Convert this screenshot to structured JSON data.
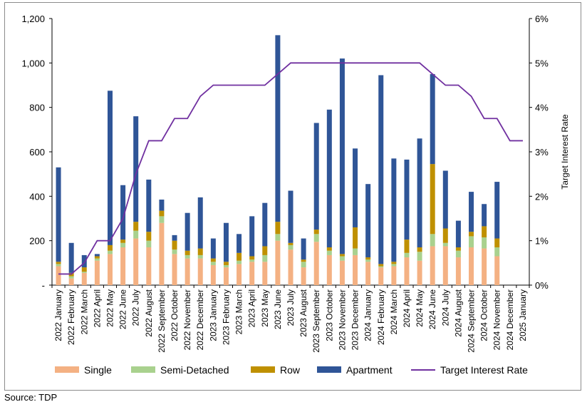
{
  "chart_data": {
    "type": "bar",
    "stacked": true,
    "categories": [
      "2022 January",
      "2022 February",
      "2022 March",
      "2022 April",
      "2022 May",
      "2022 June",
      "2022 July",
      "2022 August",
      "2022 September",
      "2022 October",
      "2022 November",
      "2022 December",
      "2023 January",
      "2023 February",
      "2023 March",
      "2023 April",
      "2023 May",
      "2023 June",
      "2023 July",
      "2023 August",
      "2023 September",
      "2023 October",
      "2023 November",
      "2023 December",
      "2024 January",
      "2024 February",
      "2024 March",
      "2024 April",
      "2024 May",
      "2024 June",
      "2024 July",
      "2024 August",
      "2024 September",
      "2024 October",
      "2024 November",
      "2024 December",
      "2025 January"
    ],
    "series": [
      {
        "name": "Single",
        "color": "#F4B183",
        "axis": "left",
        "values": [
          85,
          30,
          55,
          110,
          140,
          170,
          210,
          170,
          280,
          140,
          120,
          120,
          90,
          80,
          95,
          105,
          105,
          200,
          160,
          80,
          195,
          135,
          110,
          135,
          105,
          80,
          85,
          125,
          110,
          175,
          175,
          125,
          170,
          165,
          130,
          0,
          0
        ]
      },
      {
        "name": "Semi-Detached",
        "color": "#A9D18E",
        "axis": "left",
        "values": [
          10,
          10,
          5,
          10,
          15,
          20,
          35,
          30,
          30,
          20,
          15,
          15,
          15,
          10,
          15,
          10,
          30,
          30,
          20,
          25,
          35,
          20,
          20,
          30,
          10,
          5,
          10,
          20,
          40,
          55,
          15,
          30,
          50,
          50,
          40,
          0,
          0
        ]
      },
      {
        "name": "Row",
        "color": "#BF9000",
        "axis": "left",
        "values": [
          10,
          15,
          20,
          10,
          25,
          15,
          40,
          40,
          25,
          40,
          20,
          30,
          15,
          15,
          35,
          15,
          40,
          55,
          10,
          10,
          20,
          15,
          10,
          95,
          10,
          10,
          10,
          60,
          20,
          315,
          65,
          15,
          20,
          50,
          40,
          0,
          0
        ]
      },
      {
        "name": "Apartment",
        "color": "#2F5597",
        "axis": "left",
        "values": [
          425,
          135,
          55,
          10,
          695,
          245,
          475,
          235,
          50,
          25,
          170,
          230,
          90,
          175,
          85,
          180,
          195,
          840,
          235,
          95,
          480,
          620,
          880,
          355,
          330,
          850,
          465,
          360,
          490,
          405,
          260,
          120,
          180,
          100,
          255,
          0,
          0
        ]
      },
      {
        "name": "Target Interest Rate",
        "type": "line",
        "color": "#7030A0",
        "axis": "right",
        "values": [
          0.25,
          0.25,
          0.5,
          1.0,
          1.0,
          1.5,
          2.5,
          3.25,
          3.25,
          3.75,
          3.75,
          4.25,
          4.5,
          4.5,
          4.5,
          4.5,
          4.5,
          4.75,
          5.0,
          5.0,
          5.0,
          5.0,
          5.0,
          5.0,
          5.0,
          5.0,
          5.0,
          5.0,
          5.0,
          4.75,
          4.5,
          4.5,
          4.25,
          3.75,
          3.75,
          3.25,
          3.25
        ]
      }
    ],
    "y_left": {
      "min": 0,
      "max": 1200,
      "ticks": [
        "-",
        "200",
        "400",
        "600",
        "800",
        "1,000",
        "1,200"
      ]
    },
    "y_right": {
      "min": 0,
      "max": 6,
      "label": "Target Interest Rate",
      "ticks": [
        "0%",
        "1%",
        "2%",
        "3%",
        "4%",
        "5%",
        "6%"
      ]
    },
    "legend": {
      "position": "bottom",
      "items": [
        "Single",
        "Semi-Detached",
        "Row",
        "Apartment",
        "Target Interest Rate"
      ]
    },
    "grid": false
  },
  "source": "Source: TDP"
}
